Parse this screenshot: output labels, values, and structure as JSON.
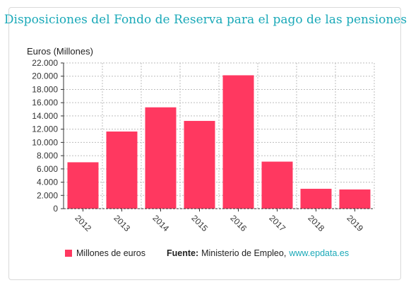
{
  "title": "Disposiciones del Fondo de Reserva para el pago de las pensiones",
  "legend": {
    "series_label": "Millones de euros",
    "source_label": "Fuente:",
    "source_text": "Ministerio de Empleo,",
    "source_link": "www.epdata.es"
  },
  "colors": {
    "bar": "#ff3860",
    "title": "#1aa9b8",
    "link": "#1aa9b8"
  },
  "chart_data": {
    "type": "bar",
    "ylabel": "Euros (Millones)",
    "categories": [
      "2012",
      "2013",
      "2014",
      "2015",
      "2016",
      "2017",
      "2018",
      "2019"
    ],
    "series": [
      {
        "name": "Millones de euros",
        "values": [
          7003,
          11648,
          15300,
          13250,
          20137,
          7100,
          3000,
          2900
        ]
      }
    ],
    "ylim": [
      0,
      22000
    ],
    "yticks": [
      "0",
      "2.000",
      "4.000",
      "6.000",
      "8.000",
      "10.000",
      "12.000",
      "14.000",
      "16.000",
      "18.000",
      "20.000",
      "22.000"
    ],
    "grid": true
  }
}
